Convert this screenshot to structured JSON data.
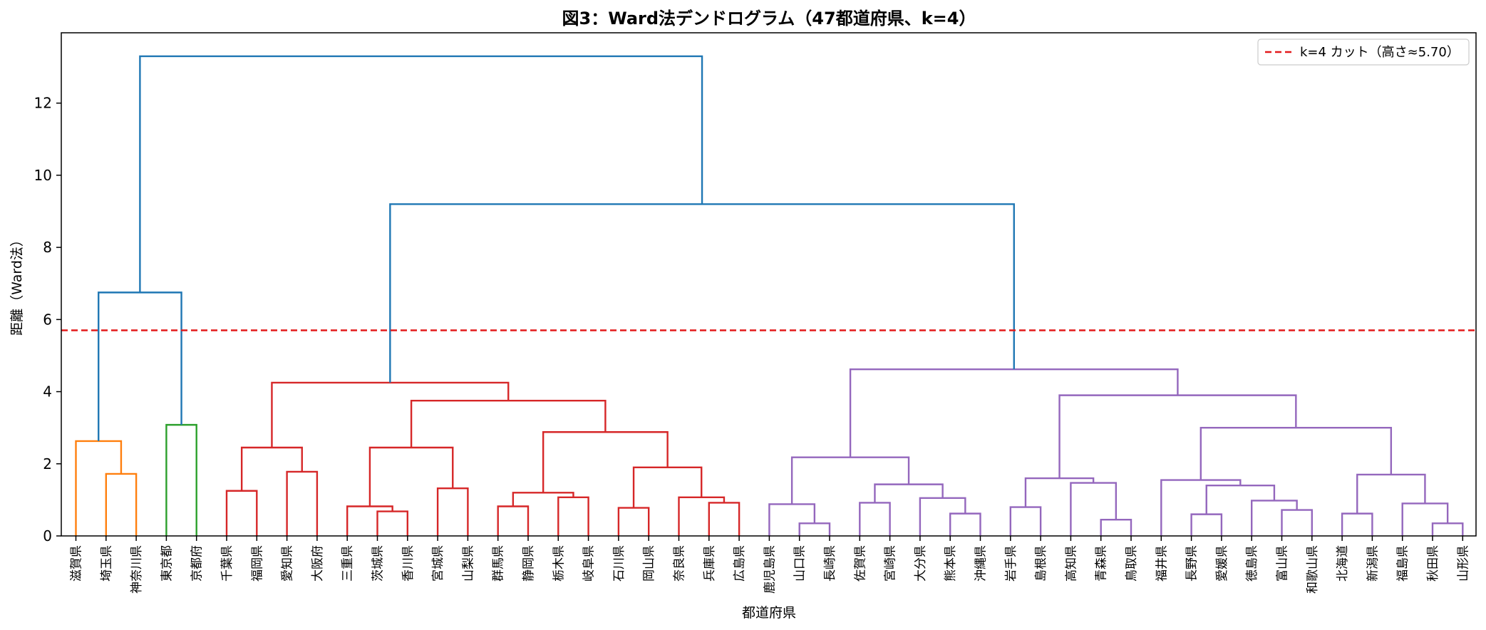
{
  "chart_data": {
    "type": "dendrogram",
    "title": "図3：Ward法デンドログラム（47都道府県、k=4）",
    "xlabel": "都道府県",
    "ylabel": "距離（Ward法）",
    "ylim": [
      0,
      13.95
    ],
    "y_ticks": [
      0,
      2,
      4,
      6,
      8,
      10,
      12
    ],
    "grid": false,
    "legend": {
      "position": "top-right",
      "entries": [
        "k=4 カット（高さ≈5.70）"
      ]
    },
    "cut_line": {
      "height": 5.7,
      "color": "#e31a1c",
      "style": "dashed"
    },
    "leaves": [
      "滋賀県",
      "埼玉県",
      "神奈川県",
      "東京都",
      "京都府",
      "千葉県",
      "福岡県",
      "愛知県",
      "大阪府",
      "三重県",
      "茨城県",
      "香川県",
      "宮城県",
      "山梨県",
      "群馬県",
      "静岡県",
      "栃木県",
      "岐阜県",
      "石川県",
      "岡山県",
      "奈良県",
      "兵庫県",
      "広島県",
      "鹿児島県",
      "山口県",
      "長崎県",
      "佐賀県",
      "宮崎県",
      "大分県",
      "熊本県",
      "沖縄県",
      "岩手県",
      "島根県",
      "高知県",
      "青森県",
      "鳥取県",
      "福井県",
      "長野県",
      "愛媛県",
      "徳島県",
      "富山県",
      "和歌山県",
      "北海道",
      "新潟県",
      "福島県",
      "秋田県",
      "山形県"
    ],
    "colors": {
      "orange": "#ff7f0e",
      "green": "#2ca02c",
      "red": "#d62728",
      "purple": "#9467bd",
      "blue": "#1f77b4",
      "cut": "#e31a1c"
    },
    "links": [
      {
        "a": 1,
        "b": 2,
        "h": 1.72,
        "c": "orange"
      },
      {
        "a": 0,
        "b": "L0",
        "h": 2.63,
        "c": "orange"
      },
      {
        "a": 3,
        "b": 4,
        "h": 3.08,
        "c": "green"
      },
      {
        "a": "L1",
        "b": "L2",
        "h": 6.75,
        "c": "blue"
      },
      {
        "a": 5,
        "b": 6,
        "h": 1.25,
        "c": "red"
      },
      {
        "a": 7,
        "b": 8,
        "h": 1.78,
        "c": "red"
      },
      {
        "a": "L4",
        "b": "L5",
        "h": 2.45,
        "c": "red"
      },
      {
        "a": 10,
        "b": 11,
        "h": 0.68,
        "c": "red"
      },
      {
        "a": 9,
        "b": "L7",
        "h": 0.82,
        "c": "red"
      },
      {
        "a": 12,
        "b": 13,
        "h": 1.32,
        "c": "red"
      },
      {
        "a": "L8",
        "b": "L9",
        "h": 2.45,
        "c": "red"
      },
      {
        "a": 14,
        "b": 15,
        "h": 0.82,
        "c": "red"
      },
      {
        "a": 16,
        "b": 17,
        "h": 1.07,
        "c": "red"
      },
      {
        "a": "L11",
        "b": "L12",
        "h": 1.2,
        "c": "red"
      },
      {
        "a": 18,
        "b": 19,
        "h": 0.78,
        "c": "red"
      },
      {
        "a": 21,
        "b": 22,
        "h": 0.92,
        "c": "red"
      },
      {
        "a": 20,
        "b": "L15",
        "h": 1.07,
        "c": "red"
      },
      {
        "a": "L14",
        "b": "L16",
        "h": 1.9,
        "c": "red"
      },
      {
        "a": "L13",
        "b": "L17",
        "h": 2.88,
        "c": "red"
      },
      {
        "a": "L10",
        "b": "L18",
        "h": 3.75,
        "c": "red"
      },
      {
        "a": "L6",
        "b": "L19",
        "h": 4.25,
        "c": "red"
      },
      {
        "a": 24,
        "b": 25,
        "h": 0.35,
        "c": "purple"
      },
      {
        "a": 23,
        "b": "L21",
        "h": 0.88,
        "c": "purple"
      },
      {
        "a": 26,
        "b": 27,
        "h": 0.92,
        "c": "purple"
      },
      {
        "a": 29,
        "b": 30,
        "h": 0.62,
        "c": "purple"
      },
      {
        "a": 28,
        "b": "L24",
        "h": 1.05,
        "c": "purple"
      },
      {
        "a": "L23",
        "b": "L25",
        "h": 1.43,
        "c": "purple"
      },
      {
        "a": "L22",
        "b": "L26",
        "h": 2.18,
        "c": "purple"
      },
      {
        "a": 31,
        "b": 32,
        "h": 0.8,
        "c": "purple"
      },
      {
        "a": 34,
        "b": 35,
        "h": 0.45,
        "c": "purple"
      },
      {
        "a": 33,
        "b": "L29",
        "h": 1.47,
        "c": "purple"
      },
      {
        "a": "L28",
        "b": "L30",
        "h": 1.6,
        "c": "purple"
      },
      {
        "a": 37,
        "b": 38,
        "h": 0.6,
        "c": "purple"
      },
      {
        "a": 40,
        "b": 41,
        "h": 0.72,
        "c": "purple"
      },
      {
        "a": 39,
        "b": "L33",
        "h": 0.98,
        "c": "purple"
      },
      {
        "a": "L32",
        "b": "L34",
        "h": 1.4,
        "c": "purple"
      },
      {
        "a": 36,
        "b": "L35",
        "h": 1.55,
        "c": "purple"
      },
      {
        "a": 42,
        "b": 43,
        "h": 0.62,
        "c": "purple"
      },
      {
        "a": 45,
        "b": 46,
        "h": 0.35,
        "c": "purple"
      },
      {
        "a": 44,
        "b": "L38",
        "h": 0.9,
        "c": "purple"
      },
      {
        "a": "L37",
        "b": "L39",
        "h": 1.7,
        "c": "purple"
      },
      {
        "a": "L36",
        "b": "L40",
        "h": 3.0,
        "c": "purple"
      },
      {
        "a": "L31",
        "b": "L41",
        "h": 3.9,
        "c": "purple"
      },
      {
        "a": "L27",
        "b": "L42",
        "h": 4.62,
        "c": "purple"
      },
      {
        "a": "L20",
        "b": "L43",
        "h": 9.2,
        "c": "blue"
      },
      {
        "a": "L3",
        "b": "L44",
        "h": 13.3,
        "c": "blue"
      }
    ]
  }
}
